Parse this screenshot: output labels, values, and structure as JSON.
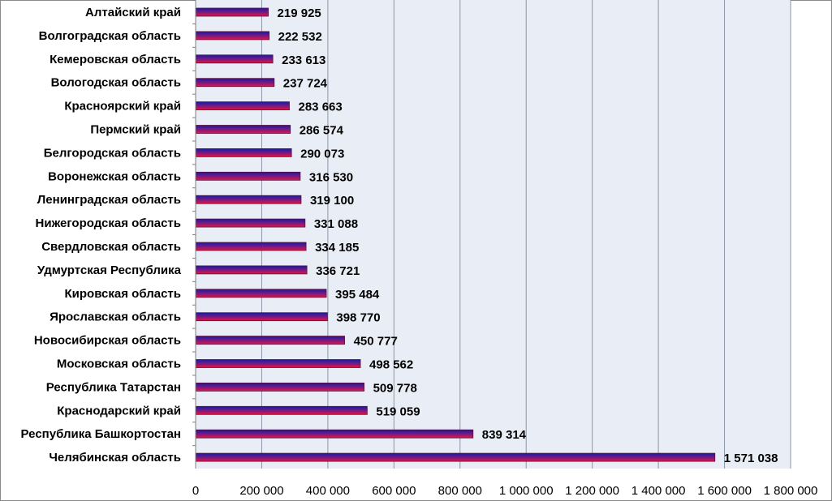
{
  "chart_data": {
    "type": "bar",
    "orientation": "horizontal",
    "categories": [
      "Алтайский край",
      "Волгоградская область",
      "Кемеровская область",
      "Вологодская область",
      "Красноярский край",
      "Пермский край",
      "Белгородская область",
      "Воронежская область",
      "Ленинградская область",
      "Нижегородская область",
      "Свердловская область",
      "Удмуртская  Республика",
      "Кировская область",
      "Ярославская область",
      "Новосибирская область",
      "Московская область",
      "Республика Татарстан",
      "Краснодарский край",
      "Республика Башкортостан",
      "Челябинская область"
    ],
    "values": [
      219925,
      222532,
      233613,
      237724,
      283663,
      286574,
      290073,
      316530,
      319100,
      331088,
      334185,
      336721,
      395484,
      398770,
      450777,
      498562,
      509778,
      519059,
      839314,
      1571038
    ],
    "value_labels": [
      "219 925",
      "222 532",
      "233 613",
      "237 724",
      "283 663",
      "286 574",
      "290 073",
      "316 530",
      "319 100",
      "331 088",
      "334 185",
      "336 721",
      "395 484",
      "398 770",
      "450 777",
      "498 562",
      "509 778",
      "519 059",
      "839 314",
      "1 571 038"
    ],
    "xticks": [
      0,
      200000,
      400000,
      600000,
      800000,
      1000000,
      1200000,
      1400000,
      1600000,
      1800000
    ],
    "xtick_labels": [
      "0",
      "200 000",
      "400 000",
      "600 000",
      "800 000",
      "1 000 000",
      "1 200 000",
      "1 400 000",
      "1 600 000",
      "1 800 000"
    ],
    "xlim": [
      0,
      1800000
    ],
    "grid": true,
    "legend": "none",
    "title": "",
    "xlabel": "",
    "ylabel": "",
    "colors": {
      "plot_background": "#e9edf6",
      "gridline": "#8c96a8",
      "bar_top": "#1a1a9e",
      "bar_bottom": "#e8143c",
      "bar_outline": "#5a1040"
    }
  }
}
